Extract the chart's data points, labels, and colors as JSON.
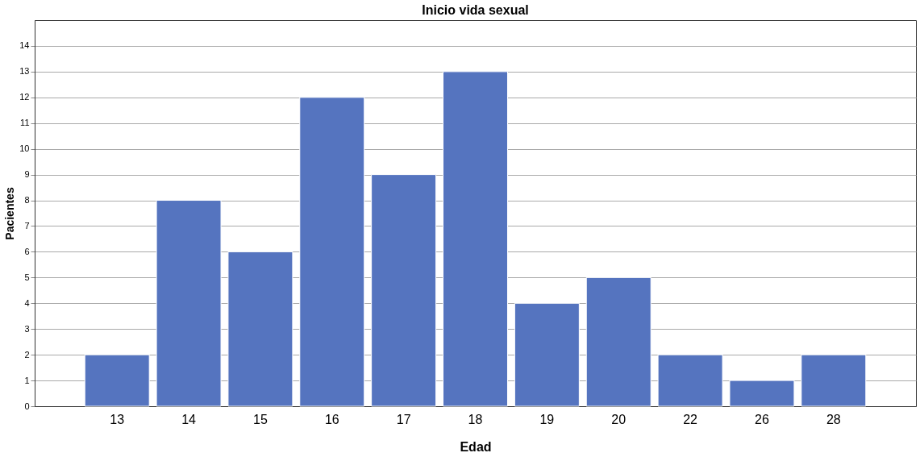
{
  "chart_data": {
    "type": "bar",
    "title": "Inicio vida sexual",
    "xlabel": "Edad",
    "ylabel": "Pacientes",
    "categories": [
      "13",
      "14",
      "15",
      "16",
      "17",
      "18",
      "19",
      "20",
      "22",
      "26",
      "28"
    ],
    "values": [
      2,
      8,
      6,
      12,
      9,
      13,
      4,
      5,
      2,
      1,
      2
    ],
    "color": "#5574bf",
    "ylim": [
      0,
      15
    ],
    "yticks": [
      0,
      1,
      2,
      3,
      4,
      5,
      6,
      7,
      8,
      9,
      10,
      11,
      12,
      13,
      14
    ],
    "grid": "y"
  }
}
